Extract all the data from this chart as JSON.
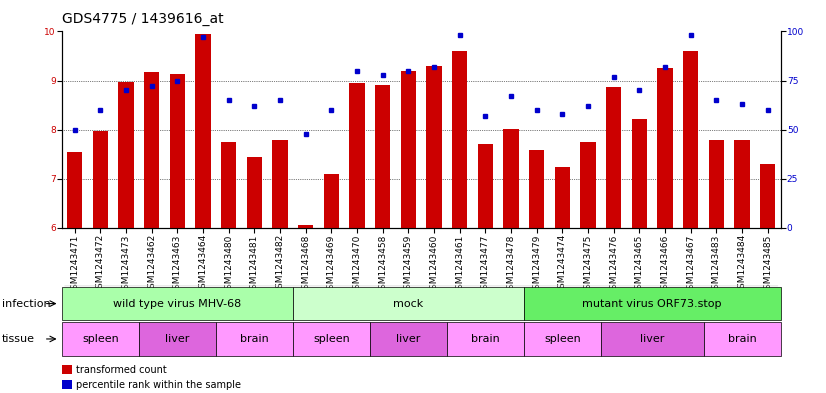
{
  "title": "GDS4775 / 1439616_at",
  "samples": [
    "GSM1243471",
    "GSM1243472",
    "GSM1243473",
    "GSM1243462",
    "GSM1243463",
    "GSM1243464",
    "GSM1243480",
    "GSM1243481",
    "GSM1243482",
    "GSM1243468",
    "GSM1243469",
    "GSM1243470",
    "GSM1243458",
    "GSM1243459",
    "GSM1243460",
    "GSM1243461",
    "GSM1243477",
    "GSM1243478",
    "GSM1243479",
    "GSM1243474",
    "GSM1243475",
    "GSM1243476",
    "GSM1243465",
    "GSM1243466",
    "GSM1243467",
    "GSM1243483",
    "GSM1243484",
    "GSM1243485"
  ],
  "bar_values": [
    7.55,
    7.98,
    8.98,
    9.18,
    9.13,
    9.95,
    7.75,
    7.45,
    7.78,
    6.05,
    7.1,
    8.95,
    8.9,
    9.2,
    9.3,
    9.6,
    7.7,
    8.02,
    7.58,
    7.25,
    7.75,
    8.87,
    8.22,
    9.25,
    9.6,
    7.78,
    7.8,
    7.3
  ],
  "percentile_values": [
    50,
    60,
    70,
    72,
    75,
    97,
    65,
    62,
    65,
    48,
    60,
    80,
    78,
    80,
    82,
    98,
    57,
    67,
    60,
    58,
    62,
    77,
    70,
    82,
    98,
    65,
    63,
    60
  ],
  "ylim_left": [
    6,
    10
  ],
  "ylim_right": [
    0,
    100
  ],
  "yticks_left": [
    6,
    7,
    8,
    9,
    10
  ],
  "yticks_right": [
    0,
    25,
    50,
    75,
    100
  ],
  "bar_color": "#cc0000",
  "dot_color": "#0000cc",
  "bar_bottom": 6.0,
  "infection_groups": [
    {
      "label": "wild type virus MHV-68",
      "start": 0,
      "end": 9,
      "color": "#aaffaa"
    },
    {
      "label": "mock",
      "start": 9,
      "end": 18,
      "color": "#ccffcc"
    },
    {
      "label": "mutant virus ORF73.stop",
      "start": 18,
      "end": 28,
      "color": "#66ee66"
    }
  ],
  "tissue_groups": [
    {
      "label": "spleen",
      "start": 0,
      "end": 3,
      "color": "#ff99ff"
    },
    {
      "label": "liver",
      "start": 3,
      "end": 6,
      "color": "#dd66dd"
    },
    {
      "label": "brain",
      "start": 6,
      "end": 9,
      "color": "#ff99ff"
    },
    {
      "label": "spleen",
      "start": 9,
      "end": 12,
      "color": "#ff99ff"
    },
    {
      "label": "liver",
      "start": 12,
      "end": 15,
      "color": "#dd66dd"
    },
    {
      "label": "brain",
      "start": 15,
      "end": 18,
      "color": "#ff99ff"
    },
    {
      "label": "spleen",
      "start": 18,
      "end": 21,
      "color": "#ff99ff"
    },
    {
      "label": "liver",
      "start": 21,
      "end": 25,
      "color": "#dd66dd"
    },
    {
      "label": "brain",
      "start": 25,
      "end": 28,
      "color": "#ff99ff"
    }
  ],
  "infection_label": "infection",
  "tissue_label": "tissue",
  "legend_bar_label": "transformed count",
  "legend_dot_label": "percentile rank within the sample",
  "background_color": "#ffffff",
  "title_fontsize": 10,
  "tick_fontsize": 6.5,
  "row_label_fontsize": 8,
  "annotation_fontsize": 8
}
